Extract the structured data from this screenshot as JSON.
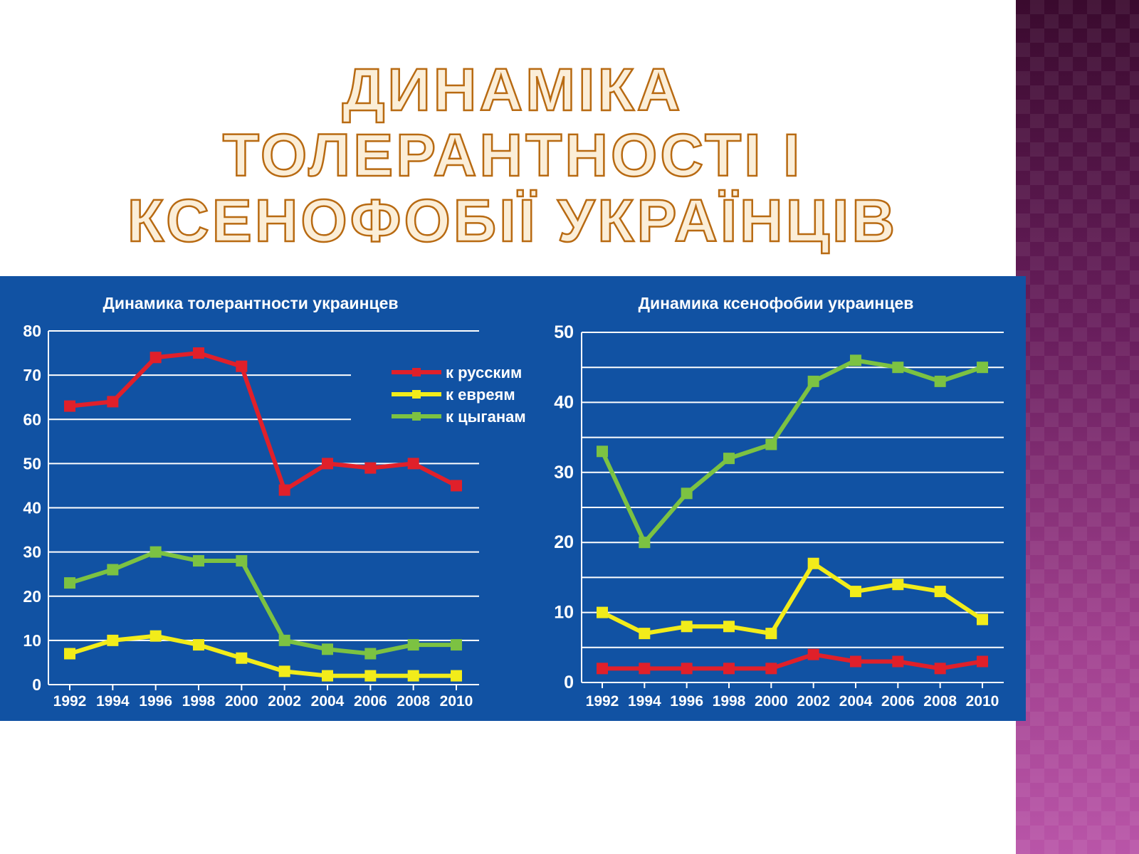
{
  "slide": {
    "title_line1": "Динаміка толерантності і",
    "title_line2": "ксенофобії українців"
  },
  "colors": {
    "panel_bg": "#1152a3",
    "grid": "#ffffff",
    "series_russians": "#e0202a",
    "series_jews": "#f2ec1a",
    "series_gypsies": "#7cc242"
  },
  "chart_data": [
    {
      "type": "line",
      "title": "Динамика толерантности украинцев",
      "xlabel": "",
      "ylabel": "",
      "ylim": [
        0,
        80
      ],
      "yticks": [
        0,
        10,
        20,
        30,
        40,
        50,
        60,
        70,
        80
      ],
      "categories": [
        "1992",
        "1994",
        "1996",
        "1998",
        "2000",
        "2002",
        "2004",
        "2006",
        "2008",
        "2010"
      ],
      "legend_position": "top-right",
      "series": [
        {
          "name": "к русским",
          "color_key": "series_russians",
          "values": [
            63,
            64,
            74,
            75,
            72,
            44,
            50,
            49,
            50,
            45
          ]
        },
        {
          "name": "к евреям",
          "color_key": "series_jews",
          "values": [
            7,
            10,
            11,
            9,
            6,
            3,
            2,
            2,
            2,
            2
          ]
        },
        {
          "name": "к цыганам",
          "color_key": "series_gypsies",
          "values": [
            23,
            26,
            30,
            28,
            28,
            10,
            8,
            7,
            9,
            9
          ]
        }
      ]
    },
    {
      "type": "line",
      "title": "Динамика ксенофобии украинцев",
      "xlabel": "",
      "ylabel": "",
      "ylim": [
        0,
        50
      ],
      "yticks": [
        0,
        10,
        20,
        30,
        40,
        50
      ],
      "categories": [
        "1992",
        "1994",
        "1996",
        "1998",
        "2000",
        "2002",
        "2004",
        "2006",
        "2008",
        "2010"
      ],
      "legend_position": "none",
      "series": [
        {
          "name": "к русским",
          "color_key": "series_russians",
          "values": [
            2,
            2,
            2,
            2,
            2,
            4,
            3,
            3,
            2,
            3
          ]
        },
        {
          "name": "к евреям",
          "color_key": "series_jews",
          "values": [
            10,
            7,
            8,
            8,
            7,
            17,
            13,
            14,
            13,
            9
          ]
        },
        {
          "name": "к цыганам",
          "color_key": "series_gypsies",
          "values": [
            33,
            20,
            27,
            32,
            34,
            43,
            46,
            45,
            43,
            45
          ]
        }
      ]
    }
  ]
}
